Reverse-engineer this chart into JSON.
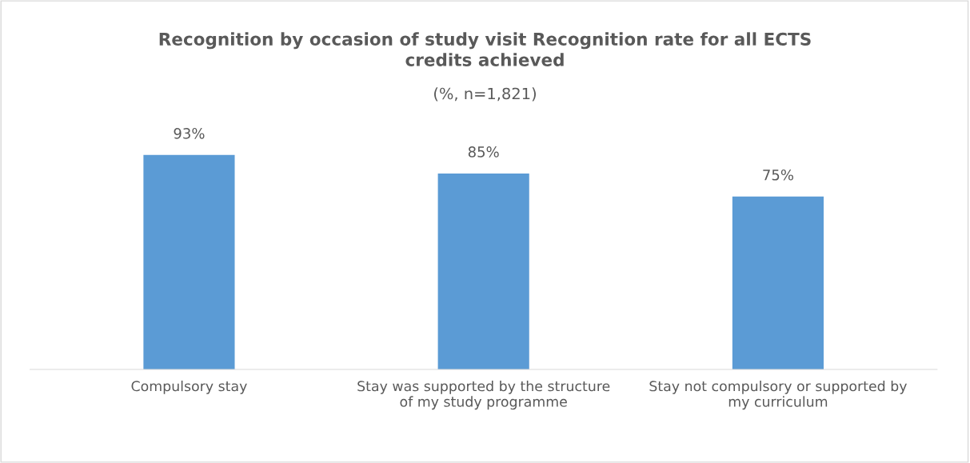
{
  "chart_data": {
    "type": "bar",
    "title": "Recognition by occasion of study visit Recognition rate for all ECTS\ncredits achieved",
    "subtitle": "(%, n=1,821)",
    "categories": [
      "Compulsory stay",
      "Stay was supported by the structure\nof my study programme",
      "Stay not compulsory or supported by\nmy curriculum"
    ],
    "values": [
      93,
      85,
      75
    ],
    "color": "#5b9bd5",
    "tick_labels": "x",
    "value_labels": [
      "93%",
      "85%",
      "75%"
    ],
    "grid": false,
    "legend": false
  }
}
